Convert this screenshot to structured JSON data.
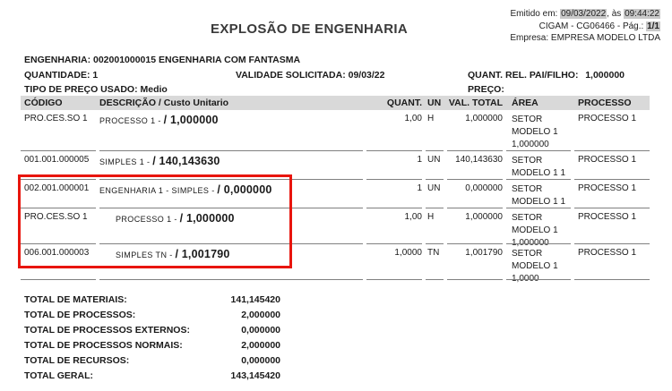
{
  "header": {
    "title": "EXPLOSÃO DE ENGENHARIA",
    "emitted_prefix": "Emitido em: ",
    "emitted_date": "09/03/2022",
    "emitted_middle": ", às ",
    "emitted_time": "09:44:22",
    "doc_ref": "CIGAM - CG06466 - Pág.: ",
    "page": "1/1",
    "company_label": "Empresa: ",
    "company_name": "EMPRESA MODELO LTDA"
  },
  "info": {
    "engineering": "ENGENHARIA: 002001000015 ENGENHARIA COM FANTASMA",
    "quantity": "QUANTIDADE: 1",
    "validity": "VALIDADE SOLICITADA: 09/03/22",
    "parent_child_label": "QUANT. REL. PAI/FILHO:",
    "parent_child_value": "1,000000",
    "price_type": "TIPO DE PREÇO USADO: Medio",
    "price_label": "PREÇO:"
  },
  "table": {
    "headers": {
      "codigo": "CÓDIGO",
      "descricao": "DESCRIÇÃO / Custo Unitario",
      "quant": "QUANT.",
      "un": "UN",
      "val_total": "VAL. TOTAL",
      "area": "ÁREA",
      "processo": "PROCESSO"
    },
    "rows": [
      {
        "codigo": "PRO.CES.SO 1",
        "desc_name": "PROCESSO 1 -",
        "desc_value": "/ 1,000000",
        "quant": "1,00",
        "un": "H",
        "val_total": "1,000000",
        "area": "SETOR\nMODELO 1\n1,000000",
        "processo": "PROCESSO 1"
      },
      {
        "codigo": "001.001.000005",
        "desc_name": "SIMPLES 1 -",
        "desc_value": "/ 140,143630",
        "quant": "1",
        "un": "UN",
        "val_total": "140,143630",
        "area": "SETOR\nMODELO 1 1",
        "processo": "PROCESSO 1"
      },
      {
        "codigo": "002.001.000001",
        "desc_name": "ENGENHARIA 1 - SIMPLES -",
        "desc_value": "/ 0,000000",
        "quant": "1",
        "un": "UN",
        "val_total": "0,000000",
        "area": "SETOR\nMODELO 1 1",
        "processo": "PROCESSO 1"
      },
      {
        "codigo": "PRO.CES.SO 1",
        "desc_name": "PROCESSO 1 -",
        "desc_value": "/ 1,000000",
        "quant": "1,00",
        "un": "H",
        "val_total": "1,000000",
        "area": "SETOR\nMODELO 1\n1,000000",
        "processo": "PROCESSO 1"
      },
      {
        "codigo": "006.001.000003",
        "desc_name": "SIMPLES TN -",
        "desc_value": "/ 1,001790",
        "quant": "1,0000",
        "un": "TN",
        "val_total": "1,001790",
        "area": "SETOR\nMODELO 1\n1,0000",
        "processo": "PROCESSO 1"
      }
    ]
  },
  "totals": [
    {
      "label": "TOTAL DE MATERIAIS:",
      "value": "141,145420"
    },
    {
      "label": "TOTAL DE PROCESSOS:",
      "value": "2,000000"
    },
    {
      "label": "TOTAL DE PROCESSOS EXTERNOS:",
      "value": "0,000000"
    },
    {
      "label": "TOTAL DE PROCESSOS NORMAIS:",
      "value": "2,000000"
    },
    {
      "label": "TOTAL DE RECURSOS:",
      "value": "0,000000"
    },
    {
      "label": "TOTAL GERAL:",
      "value": "143,145420"
    }
  ],
  "colors": {
    "highlight": "#c9c9c9",
    "table_header_bg": "#d9d9d9",
    "annotation_red": "#e8150d",
    "row_rule": "#808080"
  }
}
